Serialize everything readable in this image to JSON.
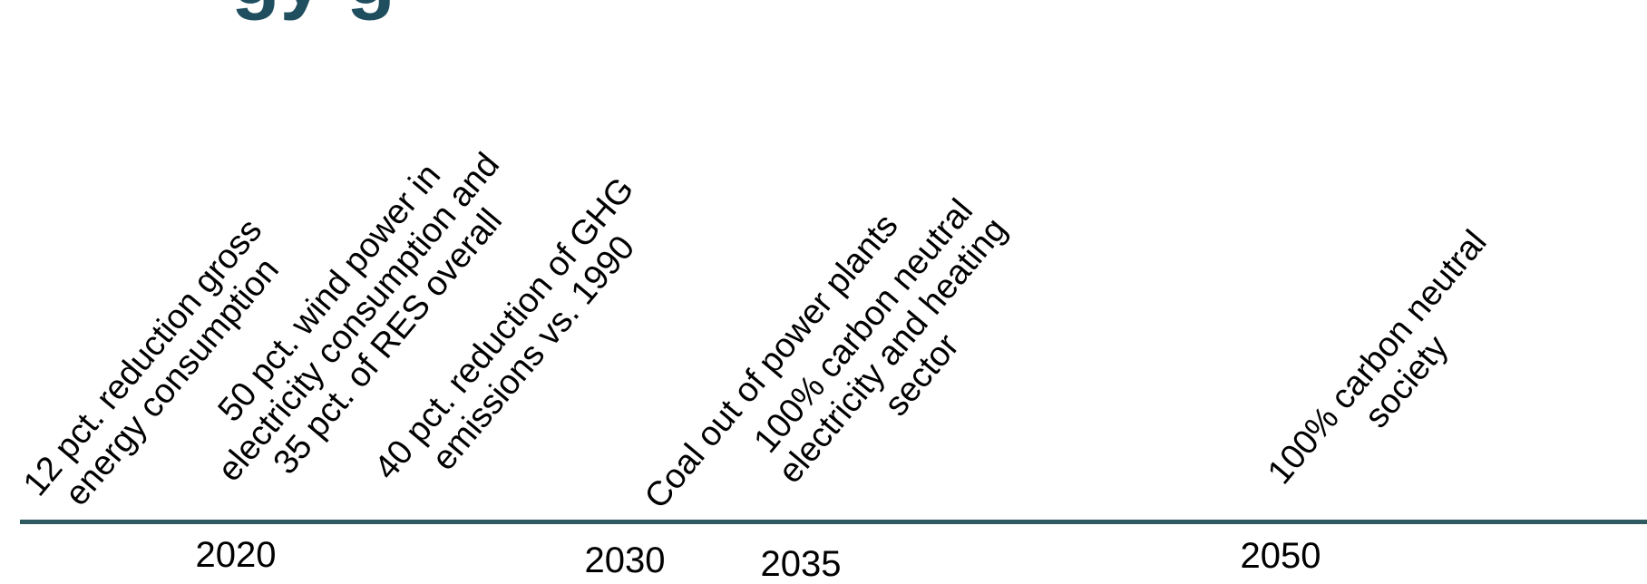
{
  "header": {
    "title_fragment": "gy g"
  },
  "milestones": [
    {
      "lines": [
        "12 pct. reduction gross",
        "energy consumption"
      ]
    },
    {
      "lines": [
        "50 pct. wind power in",
        "electricity consumption and",
        "35 pct. of RES overall"
      ]
    },
    {
      "lines": [
        "40 pct. reduction of GHG",
        "emissions vs. 1990"
      ]
    },
    {
      "lines": [
        "Coal out of power plants"
      ]
    },
    {
      "lines": [
        "100% carbon neutral",
        "electricity and heating",
        "sector"
      ]
    },
    {
      "lines": [
        "100% carbon neutral",
        "society"
      ]
    }
  ],
  "years": [
    "2020",
    "2030",
    "2035",
    "2050"
  ],
  "colors": {
    "timeline": "#2e5a60",
    "title": "#1f4e5f",
    "text": "#000000"
  }
}
